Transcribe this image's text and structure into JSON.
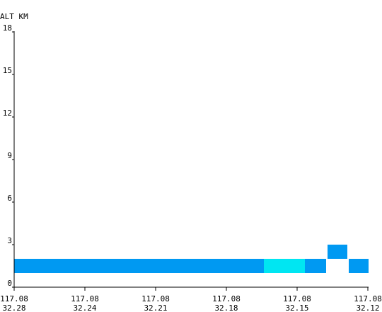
{
  "chart_data": {
    "type": "heatmap",
    "ylabel": "ALT KM",
    "ylim": [
      0,
      18
    ],
    "y_ticks": [
      "0",
      "3",
      "6",
      "9",
      "12",
      "15",
      "18"
    ],
    "x_ticks": [
      {
        "lon": "117.08",
        "lat": "32.28"
      },
      {
        "lon": "117.08",
        "lat": "32.24"
      },
      {
        "lon": "117.08",
        "lat": "32.21"
      },
      {
        "lon": "117.08",
        "lat": "32.18"
      },
      {
        "lon": "117.08",
        "lat": "32.15"
      },
      {
        "lon": "117.08",
        "lat": "32.12"
      }
    ],
    "cells": [
      {
        "x0": 0.0,
        "x1": 3.53,
        "y0": 1.0,
        "y1": 2.0,
        "color": "#0099f2"
      },
      {
        "x0": 3.53,
        "x1": 4.11,
        "y0": 1.0,
        "y1": 2.0,
        "color": "#00e6f2"
      },
      {
        "x0": 4.11,
        "x1": 4.41,
        "y0": 1.0,
        "y1": 2.0,
        "color": "#0099f2"
      },
      {
        "x0": 4.43,
        "x1": 4.71,
        "y0": 2.0,
        "y1": 3.0,
        "color": "#0099f2"
      },
      {
        "x0": 4.73,
        "x1": 5.01,
        "y0": 1.0,
        "y1": 2.0,
        "color": "#0099f2"
      }
    ]
  }
}
